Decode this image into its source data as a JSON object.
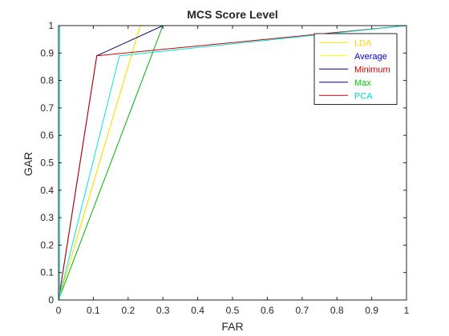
{
  "chart_data": {
    "type": "line",
    "title": "MCS Score Level",
    "xlabel": "FAR",
    "ylabel": "GAR",
    "xlim": [
      0,
      1
    ],
    "ylim": [
      0,
      1
    ],
    "xticks": [
      "0",
      "0.1",
      "0.2",
      "0.3",
      "0.4",
      "0.5",
      "0.6",
      "0.7",
      "0.8",
      "0.9",
      "1"
    ],
    "yticks": [
      "0",
      "0.1",
      "0.2",
      "0.3",
      "0.4",
      "0.5",
      "0.6",
      "0.7",
      "0.8",
      "0.9",
      "1"
    ],
    "grid": false,
    "legend_position": "top-right",
    "legend": [
      {
        "label": "LDA",
        "label_color": "#ffd700",
        "line_color": "#ffd700"
      },
      {
        "label": "Average",
        "label_color": "#0000cd",
        "line_color": "#ffff00"
      },
      {
        "label": "Minimum",
        "label_color": "#cc0000",
        "line_color": "#000080"
      },
      {
        "label": "Max",
        "label_color": "#00cc00",
        "line_color": "#000080"
      },
      {
        "label": "PCA",
        "label_color": "#00d5d5",
        "line_color": "#cc0000"
      }
    ],
    "series": [
      {
        "color": "#00b000",
        "x": [
          0,
          0.3,
          1
        ],
        "y": [
          0,
          1,
          1
        ]
      },
      {
        "color": "#ffff00",
        "x": [
          0,
          0.235,
          1
        ],
        "y": [
          0,
          1,
          1
        ]
      },
      {
        "color": "#ffd700",
        "x": [
          0,
          0.235,
          1
        ],
        "y": [
          0,
          1,
          1
        ]
      },
      {
        "color": "#000080",
        "x": [
          0,
          0.11,
          0.3,
          1
        ],
        "y": [
          0,
          0.89,
          1,
          1
        ]
      },
      {
        "color": "#cc0000",
        "x": [
          0,
          0.11,
          1
        ],
        "y": [
          0,
          0.89,
          1
        ]
      },
      {
        "color": "#00e5e5",
        "x": [
          0,
          0.175,
          1
        ],
        "y": [
          0,
          0.89,
          1
        ]
      },
      {
        "color": "#00e5e5",
        "x": [
          0.003,
          0.003
        ],
        "y": [
          0,
          1
        ]
      }
    ]
  }
}
